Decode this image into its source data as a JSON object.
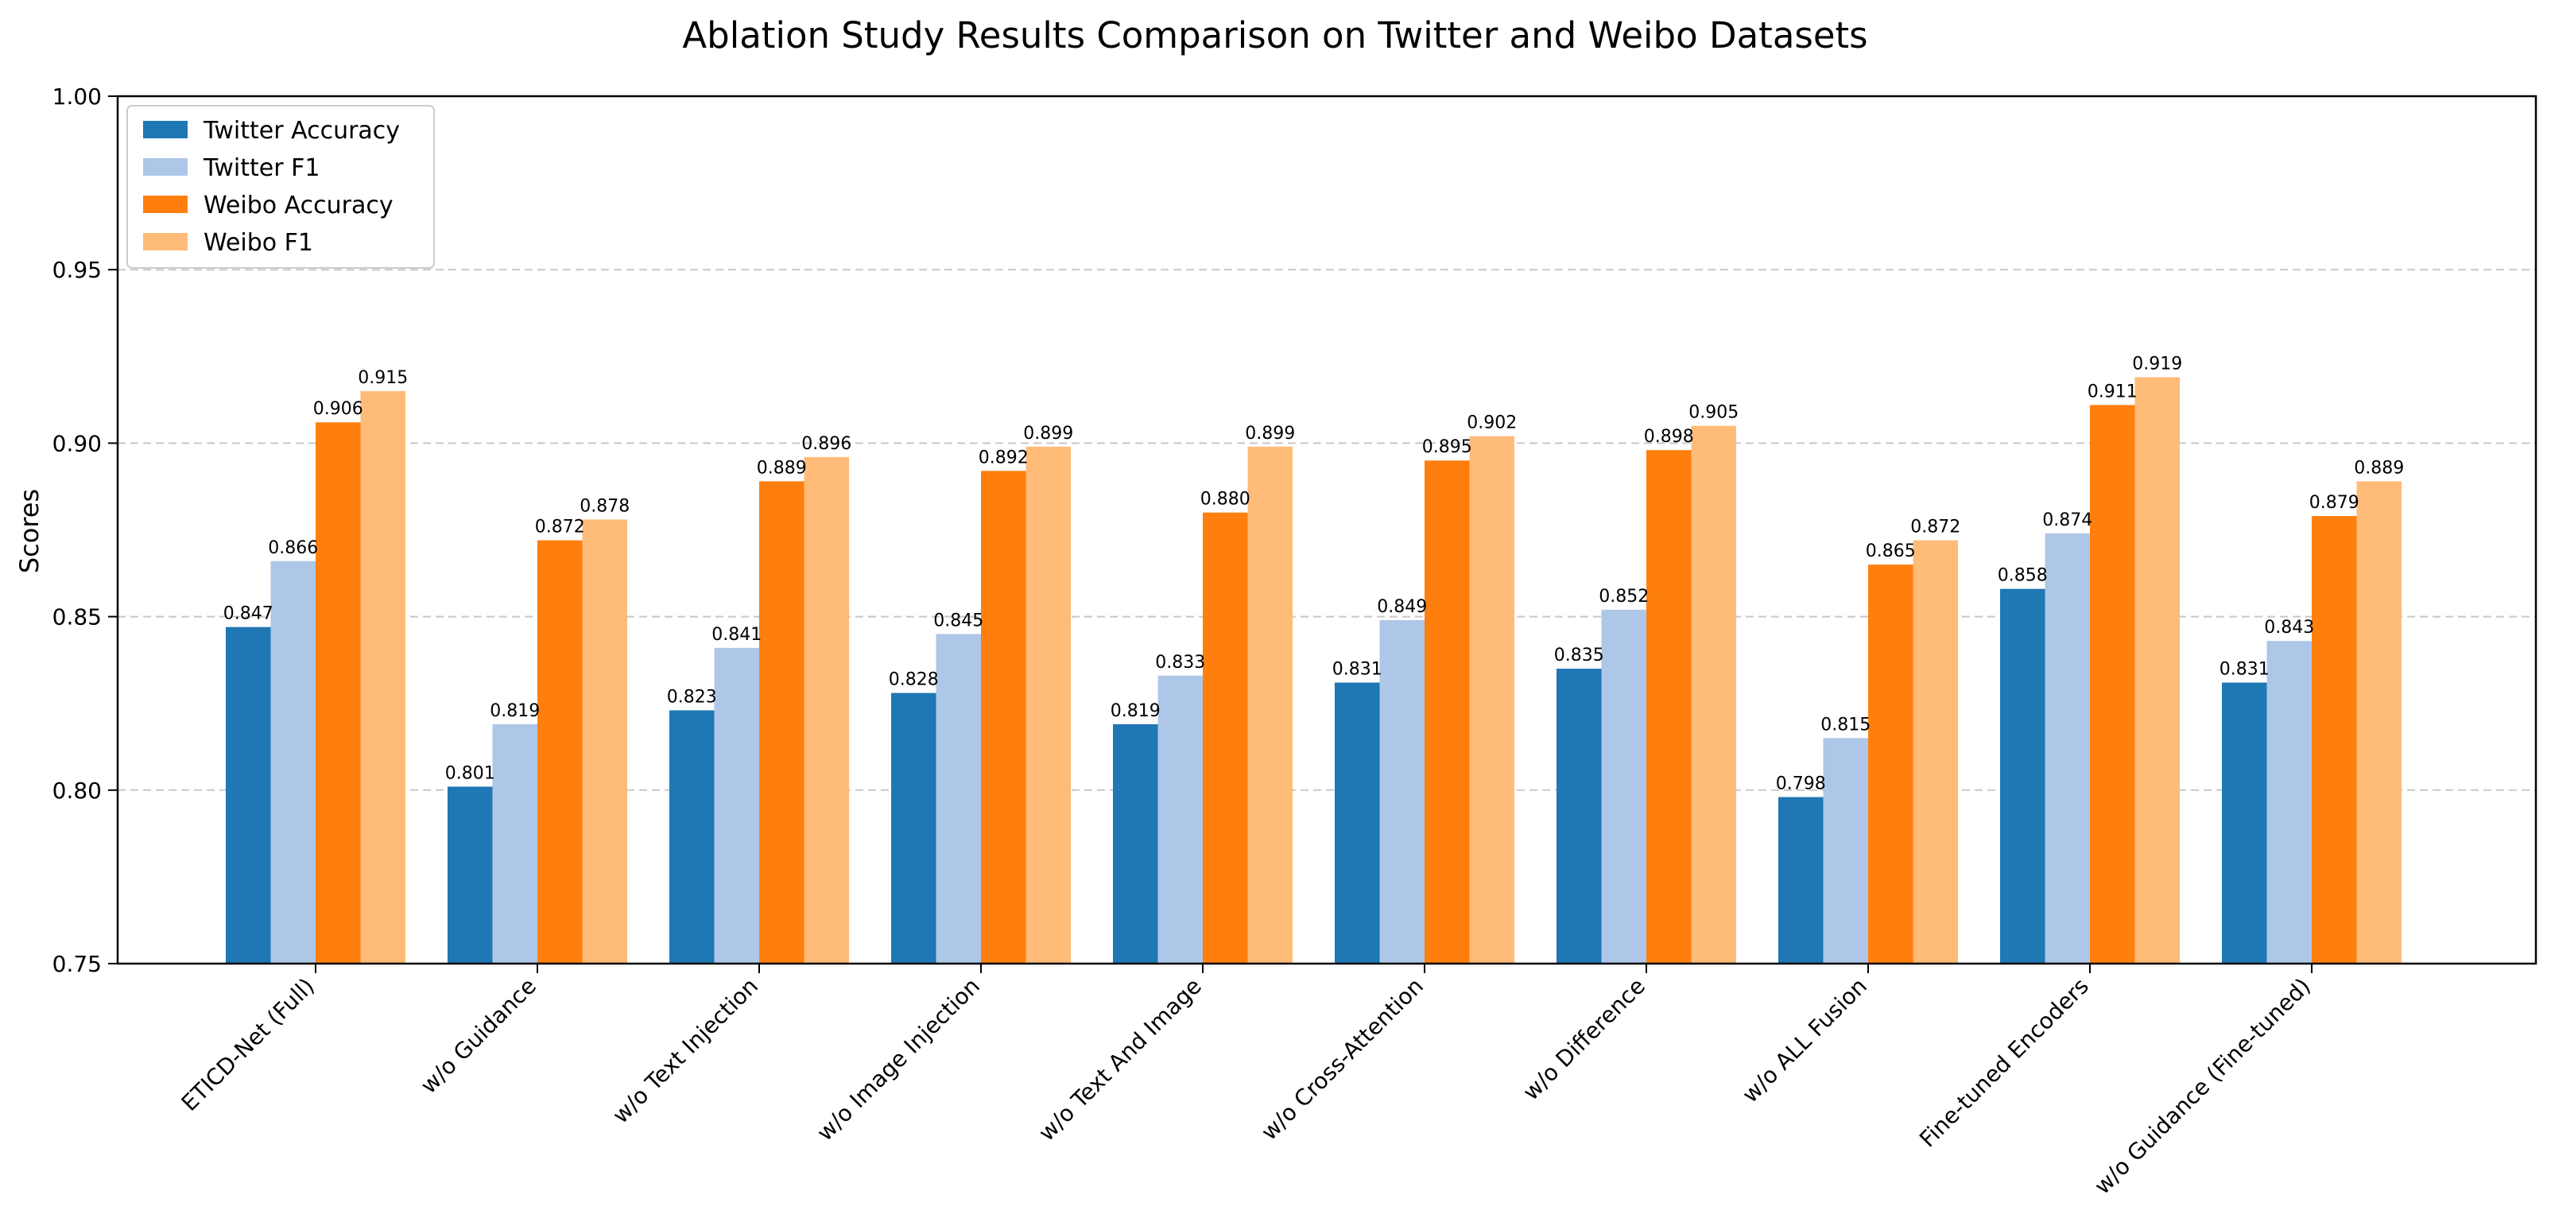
{
  "chart_data": {
    "type": "bar",
    "title": "Ablation Study Results Comparison on Twitter and Weibo Datasets",
    "xlabel": "",
    "ylabel": "Scores",
    "ylim": [
      0.75,
      1.0
    ],
    "yticks": [
      "0.75",
      "0.80",
      "0.85",
      "0.90",
      "0.95",
      "1.00"
    ],
    "grid": "y-dashed",
    "legend_position": "top-left",
    "categories": [
      "ETICD-Net (Full)",
      "w/o Guidance",
      "w/o Text Injection",
      "w/o Image Injection",
      "w/o Text And Image",
      "w/o Cross-Attention",
      "w/o Difference",
      "w/o ALL Fusion",
      "Fine-tuned Encoders",
      "w/o Guidance (Fine-tuned)"
    ],
    "series": [
      {
        "name": "Twitter Accuracy",
        "color": "#1f77b4",
        "values": [
          0.847,
          0.801,
          0.823,
          0.828,
          0.819,
          0.831,
          0.835,
          0.798,
          0.858,
          0.831
        ]
      },
      {
        "name": "Twitter F1",
        "color": "#aec7e8",
        "values": [
          0.866,
          0.819,
          0.841,
          0.845,
          0.833,
          0.849,
          0.852,
          0.815,
          0.874,
          0.843
        ]
      },
      {
        "name": "Weibo Accuracy",
        "color": "#ff7f0e",
        "values": [
          0.906,
          0.872,
          0.889,
          0.892,
          0.88,
          0.895,
          0.898,
          0.865,
          0.911,
          0.879
        ]
      },
      {
        "name": "Weibo F1",
        "color": "#ffbb78",
        "values": [
          0.915,
          0.878,
          0.896,
          0.899,
          0.899,
          0.902,
          0.905,
          0.872,
          0.919,
          0.889
        ]
      }
    ]
  }
}
